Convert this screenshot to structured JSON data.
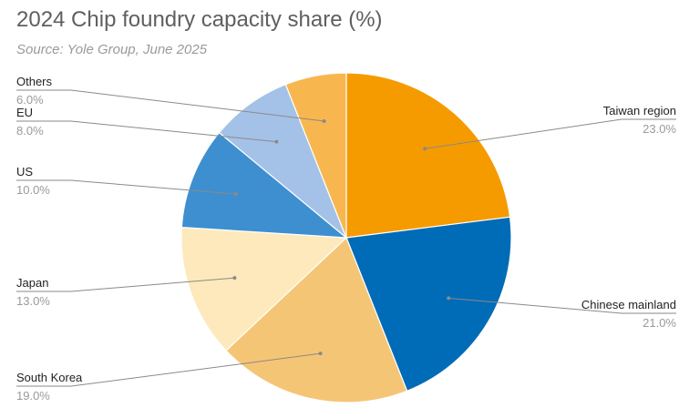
{
  "chart_data": {
    "type": "pie",
    "title": "2024 Chip foundry capacity share (%)",
    "subtitle": "Source: Yole Group, June 2025",
    "slices": [
      {
        "label": "Taiwan region",
        "value": 23.0,
        "value_label": "23.0%",
        "color": "#F59B00",
        "label_side": "right"
      },
      {
        "label": "Chinese mainland",
        "value": 21.0,
        "value_label": "21.0%",
        "color": "#006BB7",
        "label_side": "right"
      },
      {
        "label": "South Korea",
        "value": 19.0,
        "value_label": "19.0%",
        "color": "#F5C576",
        "label_side": "left"
      },
      {
        "label": "Japan",
        "value": 13.0,
        "value_label": "13.0%",
        "color": "#FDE9BC",
        "label_side": "left"
      },
      {
        "label": "US",
        "value": 10.0,
        "value_label": "10.0%",
        "color": "#3D8FD0",
        "label_side": "left"
      },
      {
        "label": "EU",
        "value": 8.0,
        "value_label": "8.0%",
        "color": "#A4C2E8",
        "label_side": "left"
      },
      {
        "label": "Others",
        "value": 6.0,
        "value_label": "6.0%",
        "color": "#F8B74E",
        "label_side": "left"
      }
    ]
  }
}
